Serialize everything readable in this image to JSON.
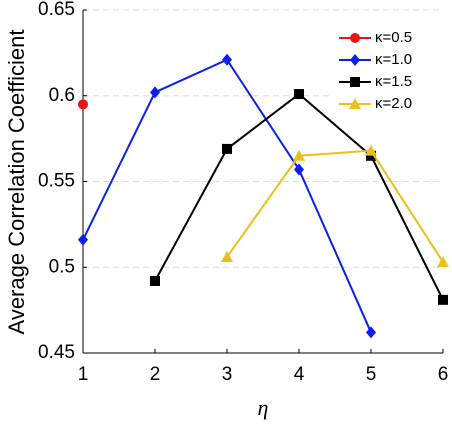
{
  "chart_data": {
    "type": "line",
    "xlabel": "η",
    "ylabel": "Average Correlation Coefficient",
    "x": [
      1,
      2,
      3,
      4,
      5,
      6
    ],
    "series": [
      {
        "name": "κ=0.5",
        "color": "#e8141b",
        "marker": "circle",
        "values": [
          0.595,
          null,
          null,
          null,
          null,
          null
        ]
      },
      {
        "name": "κ=1.0",
        "color": "#0d1fe8",
        "marker": "diamond",
        "values": [
          0.516,
          0.602,
          0.621,
          0.557,
          0.462,
          null
        ]
      },
      {
        "name": "κ=1.5",
        "color": "#000000",
        "marker": "square",
        "values": [
          null,
          0.492,
          0.569,
          0.601,
          0.565,
          0.481
        ]
      },
      {
        "name": "κ=2.0",
        "color": "#e8c21a",
        "marker": "triangle",
        "values": [
          null,
          null,
          0.506,
          0.565,
          0.568,
          0.503
        ]
      }
    ],
    "xlim": [
      1,
      6
    ],
    "xticks": [
      1,
      2,
      3,
      4,
      5,
      6
    ],
    "ylim": [
      0.45,
      0.65
    ],
    "yticks": [
      0.45,
      0.5,
      0.55,
      0.6,
      0.65
    ],
    "grid": true,
    "legend": "upper right"
  }
}
